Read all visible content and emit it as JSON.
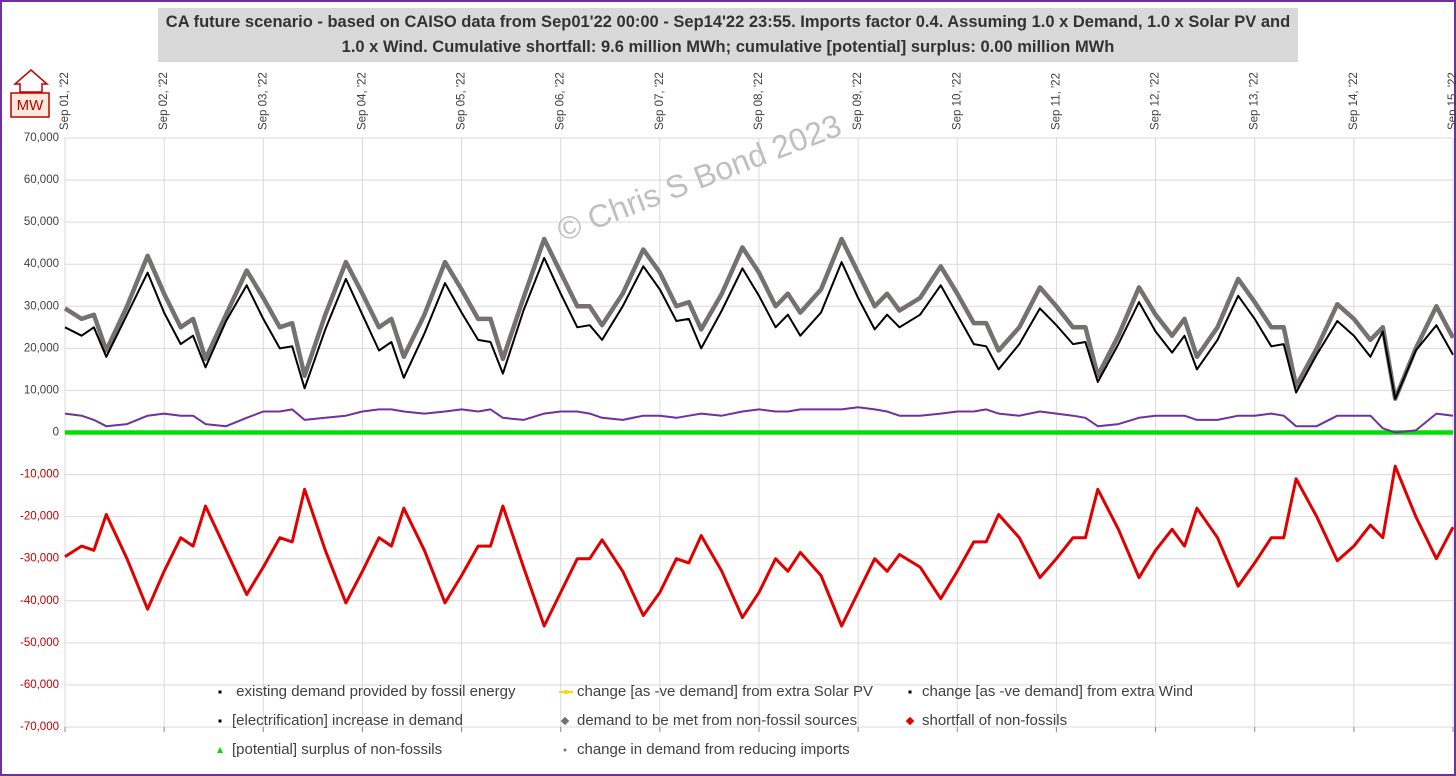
{
  "chart_data": {
    "type": "line",
    "title": "CA future scenario - based on CAISO data from Sep01'22 00:00 - Sep14'22 23:55. Imports factor 0.4.  Assuming 1.0 x Demand, 1.0 x Solar PV and 1.0 x Wind.  Cumulative shortfall: 9.6 million MWh; cumulative [potential] surplus: 0.00 million MWh",
    "y_unit": "MW",
    "annotation": "© Chris S Bond  2023",
    "x": [
      0,
      0.167,
      0.292,
      0.417,
      0.625,
      0.833,
      1,
      1.167,
      1.292,
      1.417,
      1.625,
      1.833,
      2,
      2.167,
      2.292,
      2.417,
      2.625,
      2.833,
      3,
      3.167,
      3.292,
      3.417,
      3.625,
      3.833,
      4,
      4.167,
      4.292,
      4.417,
      4.625,
      4.833,
      5,
      5.167,
      5.292,
      5.417,
      5.625,
      5.833,
      6,
      6.167,
      6.292,
      6.417,
      6.625,
      6.833,
      7,
      7.167,
      7.292,
      7.417,
      7.625,
      7.833,
      8,
      8.167,
      8.292,
      8.417,
      8.625,
      8.833,
      9,
      9.167,
      9.292,
      9.417,
      9.625,
      9.833,
      10,
      10.167,
      10.292,
      10.417,
      10.625,
      10.833,
      11,
      11.167,
      11.292,
      11.417,
      11.625,
      11.833,
      12,
      12.167,
      12.292,
      12.417,
      12.625,
      12.833,
      13,
      13.167,
      13.292,
      13.417,
      13.625,
      13.833,
      14
    ],
    "xlim": [
      0,
      14
    ],
    "xticks": [
      {
        "value": 0,
        "label": "Sep 01, '22"
      },
      {
        "value": 1,
        "label": "Sep 02, '22"
      },
      {
        "value": 2,
        "label": "Sep 03, '22"
      },
      {
        "value": 3,
        "label": "Sep 04, '22"
      },
      {
        "value": 4,
        "label": "Sep 05, '22"
      },
      {
        "value": 5,
        "label": "Sep 06, '22"
      },
      {
        "value": 6,
        "label": "Sep 07, '22"
      },
      {
        "value": 7,
        "label": "Sep 08, '22"
      },
      {
        "value": 8,
        "label": "Sep 09, '22"
      },
      {
        "value": 9,
        "label": "Sep 10, '22"
      },
      {
        "value": 10,
        "label": "Sep 11, '22"
      },
      {
        "value": 11,
        "label": "Sep 12, '22"
      },
      {
        "value": 12,
        "label": "Sep 13, '22"
      },
      {
        "value": 13,
        "label": "Sep 14, '22"
      },
      {
        "value": 14,
        "label": "Sep 15, '22"
      }
    ],
    "ylim": [
      -70000,
      70000
    ],
    "yticks": [
      {
        "value": 70000,
        "label": "70,000"
      },
      {
        "value": 60000,
        "label": "60,000"
      },
      {
        "value": 50000,
        "label": "50,000"
      },
      {
        "value": 40000,
        "label": "40,000"
      },
      {
        "value": 30000,
        "label": "30,000"
      },
      {
        "value": 20000,
        "label": "20,000"
      },
      {
        "value": 10000,
        "label": "10,000"
      },
      0,
      {
        "value": -10000,
        "label": "-10,000"
      },
      {
        "value": -20000,
        "label": "-20,000"
      },
      {
        "value": -30000,
        "label": "-30,000"
      },
      {
        "value": -40000,
        "label": "-40,000"
      },
      {
        "value": -50000,
        "label": "-50,000"
      },
      {
        "value": -60000,
        "label": "-60,000"
      },
      {
        "value": -70000,
        "label": "-70,000"
      }
    ],
    "grid": true,
    "series": [
      {
        "name": " existing demand provided by fossil energy",
        "color": "#000000",
        "values": [
          25000,
          23000,
          25000,
          18000,
          28000,
          38000,
          28500,
          21000,
          23000,
          15500,
          26500,
          35000,
          27000,
          20000,
          20500,
          10500,
          24500,
          36500,
          28000,
          19500,
          21500,
          13000,
          23500,
          35500,
          28500,
          22000,
          21500,
          14000,
          29000,
          41500,
          33000,
          25000,
          25500,
          22000,
          30000,
          39500,
          34000,
          26500,
          27000,
          20000,
          29000,
          39000,
          32500,
          25000,
          28000,
          23000,
          28500,
          40500,
          32000,
          24500,
          28000,
          25000,
          28000,
          35000,
          28000,
          21000,
          20500,
          15000,
          21000,
          29500,
          25500,
          21000,
          21500,
          12000,
          21000,
          31000,
          24000,
          19000,
          23000,
          15000,
          22000,
          32500,
          27000,
          20500,
          21000,
          9500,
          18500,
          26500,
          23000,
          18000,
          24000,
          8000,
          19500,
          25500,
          18500
        ]
      },
      {
        "name": "change [as -ve demand] from extra Solar PV",
        "color": "#ffd700",
        "values": [
          0,
          0,
          0,
          0,
          0,
          0,
          0,
          0,
          0,
          0,
          0,
          0,
          0,
          0,
          0,
          0,
          0,
          0,
          0,
          0,
          0,
          0,
          0,
          0,
          0,
          0,
          0,
          0,
          0,
          0,
          0,
          0,
          0,
          0,
          0,
          0,
          0,
          0,
          0,
          0,
          0,
          0,
          0,
          0,
          0,
          0,
          0,
          0,
          0,
          0,
          0,
          0,
          0,
          0,
          0,
          0,
          0,
          0,
          0,
          0,
          0,
          0,
          0,
          0,
          0,
          0,
          0,
          0,
          0,
          0,
          0,
          0,
          0,
          0,
          0,
          0,
          0,
          0,
          0,
          0,
          0,
          0,
          0,
          0,
          0
        ]
      },
      {
        "name": "change [as -ve demand] from extra Wind",
        "color": "#000000",
        "values": [
          0,
          0,
          0,
          0,
          0,
          0,
          0,
          0,
          0,
          0,
          0,
          0,
          0,
          0,
          0,
          0,
          0,
          0,
          0,
          0,
          0,
          0,
          0,
          0,
          0,
          0,
          0,
          0,
          0,
          0,
          0,
          0,
          0,
          0,
          0,
          0,
          0,
          0,
          0,
          0,
          0,
          0,
          0,
          0,
          0,
          0,
          0,
          0,
          0,
          0,
          0,
          0,
          0,
          0,
          0,
          0,
          0,
          0,
          0,
          0,
          0,
          0,
          0,
          0,
          0,
          0,
          0,
          0,
          0,
          0,
          0,
          0,
          0,
          0,
          0,
          0,
          0,
          0,
          0,
          0,
          0,
          0,
          0,
          0,
          0
        ]
      },
      {
        "name": "[electrification] increase in demand",
        "color": "#000000",
        "values": [
          0,
          0,
          0,
          0,
          0,
          0,
          0,
          0,
          0,
          0,
          0,
          0,
          0,
          0,
          0,
          0,
          0,
          0,
          0,
          0,
          0,
          0,
          0,
          0,
          0,
          0,
          0,
          0,
          0,
          0,
          0,
          0,
          0,
          0,
          0,
          0,
          0,
          0,
          0,
          0,
          0,
          0,
          0,
          0,
          0,
          0,
          0,
          0,
          0,
          0,
          0,
          0,
          0,
          0,
          0,
          0,
          0,
          0,
          0,
          0,
          0,
          0,
          0,
          0,
          0,
          0,
          0,
          0,
          0,
          0,
          0,
          0,
          0,
          0,
          0,
          0,
          0,
          0,
          0,
          0,
          0,
          0,
          0,
          0,
          0
        ]
      },
      {
        "name": "demand to be met from non-fossil sources",
        "color": "#767171",
        "values": [
          29500,
          27000,
          28000,
          19500,
          30000,
          42000,
          33000,
          25000,
          27000,
          17500,
          28000,
          38500,
          32000,
          25000,
          26000,
          13500,
          28000,
          40500,
          33000,
          25000,
          27000,
          18000,
          28000,
          40500,
          34000,
          27000,
          27000,
          17500,
          32000,
          46000,
          38000,
          30000,
          30000,
          25500,
          33000,
          43500,
          38000,
          30000,
          31000,
          24500,
          33000,
          44000,
          38000,
          30000,
          33000,
          28500,
          34000,
          46000,
          38000,
          30000,
          33000,
          29000,
          32000,
          39500,
          33000,
          26000,
          26000,
          19500,
          25000,
          34500,
          30000,
          25000,
          25000,
          13500,
          23000,
          34500,
          28000,
          23000,
          27000,
          18000,
          25000,
          36500,
          31000,
          25000,
          25000,
          11000,
          20000,
          30500,
          27000,
          22000,
          25000,
          8000,
          20000,
          30000,
          22500
        ]
      },
      {
        "name": "shortfall of non-fossils",
        "color": "#e00000",
        "values": [
          -29500,
          -27000,
          -28000,
          -19500,
          -30000,
          -42000,
          -33000,
          -25000,
          -27000,
          -17500,
          -28000,
          -38500,
          -32000,
          -25000,
          -26000,
          -13500,
          -28000,
          -40500,
          -33000,
          -25000,
          -27000,
          -18000,
          -28000,
          -40500,
          -34000,
          -27000,
          -27000,
          -17500,
          -32000,
          -46000,
          -38000,
          -30000,
          -30000,
          -25500,
          -33000,
          -43500,
          -38000,
          -30000,
          -31000,
          -24500,
          -33000,
          -44000,
          -38000,
          -30000,
          -33000,
          -28500,
          -34000,
          -46000,
          -38000,
          -30000,
          -33000,
          -29000,
          -32000,
          -39500,
          -33000,
          -26000,
          -26000,
          -19500,
          -25000,
          -34500,
          -30000,
          -25000,
          -25000,
          -13500,
          -23000,
          -34500,
          -28000,
          -23000,
          -27000,
          -18000,
          -25000,
          -36500,
          -31000,
          -25000,
          -25000,
          -11000,
          -20000,
          -30500,
          -27000,
          -22000,
          -25000,
          -8000,
          -20000,
          -30000,
          -22500
        ]
      },
      {
        "name": "[potential] surplus of non-fossils",
        "color": "#00e000",
        "values": [
          0,
          0,
          0,
          0,
          0,
          0,
          0,
          0,
          0,
          0,
          0,
          0,
          0,
          0,
          0,
          0,
          0,
          0,
          0,
          0,
          0,
          0,
          0,
          0,
          0,
          0,
          0,
          0,
          0,
          0,
          0,
          0,
          0,
          0,
          0,
          0,
          0,
          0,
          0,
          0,
          0,
          0,
          0,
          0,
          0,
          0,
          0,
          0,
          0,
          0,
          0,
          0,
          0,
          0,
          0,
          0,
          0,
          0,
          0,
          0,
          0,
          0,
          0,
          0,
          0,
          0,
          0,
          0,
          0,
          0,
          0,
          0,
          0,
          0,
          0,
          0,
          0,
          0,
          0,
          0,
          0,
          0,
          0,
          0,
          0
        ]
      },
      {
        "name": "change in demand from reducing imports",
        "color": "#7030a0",
        "values": [
          4500,
          4000,
          3000,
          1500,
          2000,
          4000,
          4500,
          4000,
          4000,
          2000,
          1500,
          3500,
          5000,
          5000,
          5500,
          3000,
          3500,
          4000,
          5000,
          5500,
          5500,
          5000,
          4500,
          5000,
          5500,
          5000,
          5500,
          3500,
          3000,
          4500,
          5000,
          5000,
          4500,
          3500,
          3000,
          4000,
          4000,
          3500,
          4000,
          4500,
          4000,
          5000,
          5500,
          5000,
          5000,
          5500,
          5500,
          5500,
          6000,
          5500,
          5000,
          4000,
          4000,
          4500,
          5000,
          5000,
          5500,
          4500,
          4000,
          5000,
          4500,
          4000,
          3500,
          1500,
          2000,
          3500,
          4000,
          4000,
          4000,
          3000,
          3000,
          4000,
          4000,
          4500,
          4000,
          1500,
          1500,
          4000,
          4000,
          4000,
          1000,
          0,
          500,
          4500,
          4000
        ]
      }
    ]
  }
}
